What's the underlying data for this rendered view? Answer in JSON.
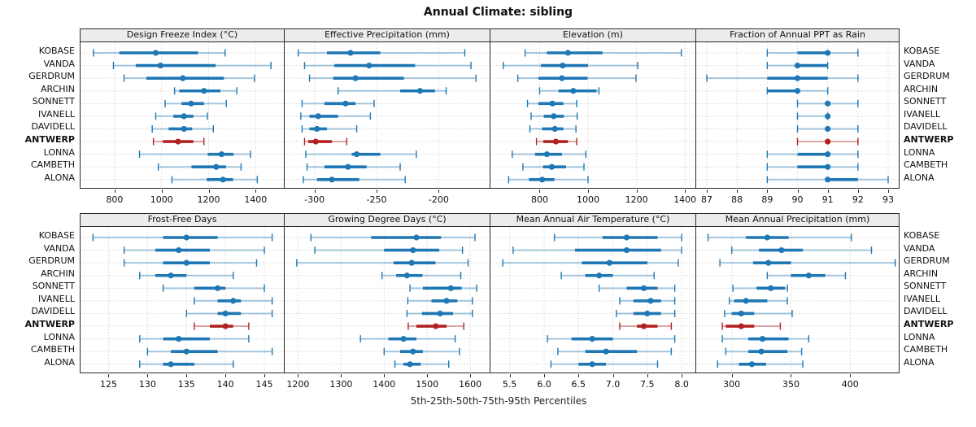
{
  "title": "Annual Climate: sibling",
  "caption": "5th-25th-50th-75th-95th Percentiles",
  "percentile_labels": [
    "5th",
    "25th",
    "50th",
    "75th",
    "95th"
  ],
  "locations": [
    "KOBASE",
    "VANDA",
    "GERDRUM",
    "ARCHIN",
    "SONNETT",
    "IVANELL",
    "DAVIDELL",
    "ANTWERP",
    "LONNA",
    "CAMBETH",
    "ALONA"
  ],
  "highlighted_location": "ANTWERP",
  "colors": {
    "series_normal": "#1f77b4",
    "series_highlight": "#b22222",
    "grid": "#c8c8c8",
    "panel_border": "#2a2a2a",
    "header_bg": "#ececec"
  },
  "chart_data": [
    {
      "type": "interval",
      "title": "Design Freeze Index (°C)",
      "xlim": [
        655,
        1520
      ],
      "ticks": [
        800,
        1000,
        1200,
        1400
      ],
      "tick_labels": [
        "800",
        "1000",
        "1200",
        "1400"
      ],
      "values": [
        [
          710,
          820,
          975,
          1155,
          1270
        ],
        [
          795,
          890,
          995,
          1230,
          1465
        ],
        [
          840,
          935,
          1090,
          1265,
          1395
        ],
        [
          1055,
          1075,
          1180,
          1250,
          1320
        ],
        [
          1015,
          1085,
          1125,
          1180,
          1275
        ],
        [
          975,
          1050,
          1095,
          1135,
          1195
        ],
        [
          960,
          1030,
          1095,
          1130,
          1220
        ],
        [
          965,
          1005,
          1070,
          1135,
          1180
        ],
        [
          906,
          1196,
          1255,
          1306,
          1378
        ],
        [
          986,
          1127,
          1232,
          1274,
          1338
        ],
        [
          1044,
          1192,
          1261,
          1304,
          1407
        ]
      ]
    },
    {
      "type": "interval",
      "title": "Effective Precipitation (mm)",
      "xlim": [
        -324,
        -159
      ],
      "ticks": [
        -300,
        -250,
        -200
      ],
      "tick_labels": [
        "-300",
        "-250",
        "-200"
      ],
      "values": [
        [
          -313,
          -290,
          -271,
          -247,
          -179
        ],
        [
          -308,
          -284,
          -256,
          -219,
          -174
        ],
        [
          -304,
          -285,
          -267,
          -228,
          -170
        ],
        [
          -281,
          -231,
          -215,
          -203,
          -194
        ],
        [
          -310,
          -292,
          -275,
          -267,
          -252
        ],
        [
          -311,
          -304,
          -297,
          -281,
          -255
        ],
        [
          -310,
          -304,
          -298,
          -290,
          -266
        ],
        [
          -308,
          -305,
          -299,
          -286,
          -274
        ],
        [
          -307,
          -270,
          -266,
          -247,
          -218
        ],
        [
          -306,
          -292,
          -273,
          -258,
          -231
        ],
        [
          -309,
          -298,
          -286,
          -264,
          -227
        ]
      ]
    },
    {
      "type": "interval",
      "title": "Elevation (m)",
      "xlim": [
        597,
        1443
      ],
      "ticks": [
        800,
        1000,
        1200,
        1400
      ],
      "tick_labels": [
        "800",
        "1000",
        "1200",
        "1400"
      ],
      "values": [
        [
          740,
          830,
          917,
          1060,
          1385
        ],
        [
          650,
          805,
          895,
          1000,
          1205
        ],
        [
          710,
          795,
          892,
          998,
          1198
        ],
        [
          800,
          878,
          939,
          1035,
          1045
        ],
        [
          750,
          795,
          853,
          898,
          953
        ],
        [
          765,
          817,
          858,
          900,
          955
        ],
        [
          760,
          810,
          863,
          898,
          950
        ],
        [
          787,
          815,
          867,
          917,
          953
        ],
        [
          687,
          781,
          830,
          892,
          991
        ],
        [
          731,
          814,
          850,
          909,
          983
        ],
        [
          672,
          756,
          811,
          861,
          1000
        ]
      ]
    },
    {
      "type": "interval",
      "title": "Fraction of Annual PPT as Rain",
      "xlim": [
        86.65,
        93.35
      ],
      "ticks": [
        87,
        88,
        89,
        90,
        91,
        92,
        93
      ],
      "tick_labels": [
        "87",
        "88",
        "89",
        "90",
        "91",
        "92",
        "93"
      ],
      "values": [
        [
          89,
          90,
          91,
          91,
          92
        ],
        [
          89,
          90,
          90,
          91,
          91
        ],
        [
          87,
          89,
          90,
          91,
          92
        ],
        [
          89,
          89,
          90,
          90,
          91
        ],
        [
          90,
          91,
          91,
          91,
          92
        ],
        [
          90,
          91,
          91,
          91,
          91
        ],
        [
          90,
          91,
          91,
          91,
          92
        ],
        [
          90,
          91,
          91,
          91,
          92
        ],
        [
          89,
          90,
          91,
          91,
          92
        ],
        [
          89,
          90,
          91,
          91,
          92
        ],
        [
          89,
          91,
          91,
          92,
          93
        ]
      ]
    },
    {
      "type": "interval",
      "title": "Frost-Free Days",
      "xlim": [
        121.4,
        147.5
      ],
      "ticks": [
        125,
        130,
        135,
        140,
        145
      ],
      "tick_labels": [
        "125",
        "130",
        "135",
        "140",
        "145"
      ],
      "values": [
        [
          123,
          132,
          135,
          139,
          146
        ],
        [
          127,
          131,
          134,
          138,
          145
        ],
        [
          127,
          132,
          135,
          138,
          144
        ],
        [
          129,
          131,
          133,
          135,
          141
        ],
        [
          132,
          136,
          139,
          140,
          145
        ],
        [
          136,
          139,
          141,
          142,
          146
        ],
        [
          135,
          139,
          140,
          142,
          146
        ],
        [
          136,
          138,
          140,
          141,
          143
        ],
        [
          129,
          132,
          134,
          138,
          143
        ],
        [
          130,
          133,
          135,
          139,
          146
        ],
        [
          129,
          132,
          133,
          136,
          141
        ]
      ]
    },
    {
      "type": "interval",
      "title": "Growing Degree Days (°C)",
      "xlim": [
        1169,
        1645
      ],
      "ticks": [
        1200,
        1300,
        1400,
        1500,
        1600
      ],
      "tick_labels": [
        "1200",
        "1300",
        "1400",
        "1500",
        "1600"
      ],
      "values": [
        [
          1230,
          1370,
          1475,
          1532,
          1611
        ],
        [
          1239,
          1400,
          1467,
          1528,
          1582
        ],
        [
          1197,
          1422,
          1464,
          1519,
          1595
        ],
        [
          1395,
          1428,
          1453,
          1489,
          1578
        ],
        [
          1460,
          1490,
          1555,
          1580,
          1615
        ],
        [
          1455,
          1510,
          1545,
          1570,
          1605
        ],
        [
          1453,
          1488,
          1530,
          1560,
          1605
        ],
        [
          1456,
          1475,
          1520,
          1545,
          1585
        ],
        [
          1345,
          1410,
          1445,
          1475,
          1565
        ],
        [
          1400,
          1437,
          1467,
          1490,
          1575
        ],
        [
          1425,
          1445,
          1460,
          1485,
          1550
        ]
      ]
    },
    {
      "type": "interval",
      "title": "Mean Annual Air Temperature (°C)",
      "xlim": [
        5.22,
        8.2
      ],
      "ticks": [
        5.5,
        6.0,
        6.5,
        7.0,
        7.5,
        8.0
      ],
      "tick_labels": [
        "5.5",
        "6.0",
        "6.5",
        "7.0",
        "7.5",
        "8.0"
      ],
      "values": [
        [
          6.15,
          6.85,
          7.2,
          7.65,
          8.0
        ],
        [
          5.55,
          6.45,
          7.2,
          7.7,
          8.0
        ],
        [
          5.4,
          6.55,
          6.95,
          7.5,
          7.95
        ],
        [
          6.25,
          6.6,
          6.8,
          7.0,
          7.6
        ],
        [
          6.8,
          7.2,
          7.45,
          7.65,
          7.9
        ],
        [
          7.1,
          7.3,
          7.55,
          7.7,
          7.9
        ],
        [
          7.05,
          7.3,
          7.5,
          7.7,
          7.9
        ],
        [
          7.1,
          7.35,
          7.45,
          7.65,
          7.85
        ],
        [
          6.05,
          6.4,
          6.7,
          7.0,
          7.9
        ],
        [
          6.2,
          6.6,
          6.9,
          7.35,
          7.85
        ],
        [
          6.1,
          6.5,
          6.7,
          6.9,
          7.65
        ]
      ]
    },
    {
      "type": "interval",
      "title": "Mean Annual Precipitation (mm)",
      "xlim": [
        270,
        441
      ],
      "ticks": [
        300,
        350,
        400
      ],
      "tick_labels": [
        "300",
        "350",
        "400"
      ],
      "values": [
        [
          280,
          312,
          330,
          348,
          401
        ],
        [
          300,
          323,
          342,
          360,
          418
        ],
        [
          290,
          318,
          331,
          350,
          438
        ],
        [
          330,
          350,
          365,
          379,
          396
        ],
        [
          301,
          321,
          333,
          345,
          347
        ],
        [
          298,
          302,
          312,
          330,
          347
        ],
        [
          294,
          300,
          308,
          319,
          351
        ],
        [
          292,
          295,
          308,
          319,
          341
        ],
        [
          292,
          314,
          326,
          348,
          365
        ],
        [
          295,
          314,
          325,
          347,
          359
        ],
        [
          288,
          306,
          317,
          329,
          360
        ]
      ]
    }
  ]
}
